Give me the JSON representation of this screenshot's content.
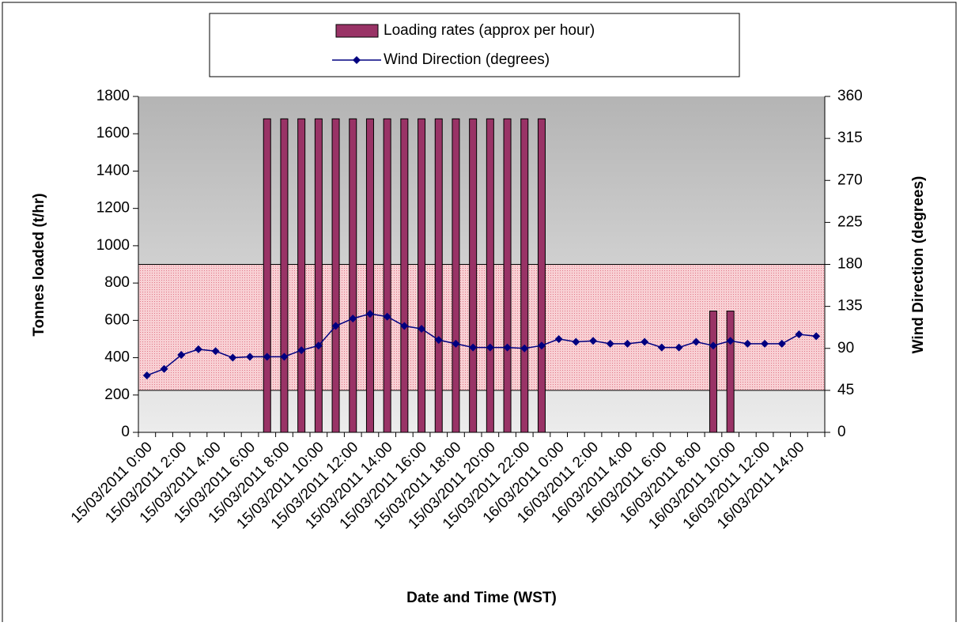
{
  "chart_data": {
    "type": "bar_line",
    "xlabel": "Date and Time (WST)",
    "ylabel": "Tonnes loaded (t/hr)",
    "y2label": "Wind Direction (degrees)",
    "categories": [
      "15/03/2011 0:00",
      null,
      "15/03/2011 2:00",
      null,
      "15/03/2011 4:00",
      null,
      "15/03/2011 6:00",
      null,
      "15/03/2011 8:00",
      null,
      "15/03/2011 10:00",
      null,
      "15/03/2011 12:00",
      null,
      "15/03/2011 14:00",
      null,
      "15/03/2011 16:00",
      null,
      "15/03/2011 18:00",
      null,
      "15/03/2011 20:00",
      null,
      "15/03/2011 22:00",
      null,
      "16/03/2011 0:00",
      null,
      "16/03/2011 2:00",
      null,
      "16/03/2011 4:00",
      null,
      "16/03/2011 6:00",
      null,
      "16/03/2011 8:00",
      null,
      "16/03/2011 10:00",
      null,
      "16/03/2011 12:00",
      null,
      "16/03/2011 14:00",
      null
    ],
    "series": [
      {
        "name": "Loading rates (approx per hour)",
        "color": "#993366",
        "kind": "bar",
        "values": [
          0,
          0,
          0,
          0,
          0,
          0,
          0,
          1680,
          1680,
          1680,
          1680,
          1680,
          1680,
          1680,
          1680,
          1680,
          1680,
          1680,
          1680,
          1680,
          1680,
          1680,
          1680,
          1680,
          0,
          0,
          0,
          0,
          0,
          0,
          0,
          0,
          0,
          650,
          650,
          0,
          0,
          0,
          0,
          0
        ]
      },
      {
        "name": "Wind Direction (degrees)",
        "color": "#000080",
        "kind": "line",
        "axis": "y2",
        "values": [
          61,
          68,
          83,
          89,
          87,
          80,
          81,
          81,
          81,
          88,
          93,
          114,
          122,
          127,
          124,
          114,
          111,
          99,
          95,
          91,
          91,
          91,
          90,
          93,
          100,
          97,
          98,
          95,
          95,
          97,
          91,
          91,
          97,
          93,
          98,
          95,
          95,
          95,
          105,
          103
        ]
      }
    ],
    "highlight_range": [
      45,
      180
    ],
    "ylim": [
      0,
      1800
    ],
    "yticks": [
      0,
      200,
      400,
      600,
      800,
      1000,
      1200,
      1400,
      1600,
      1800
    ],
    "y2lim": [
      0,
      360
    ],
    "y2ticks": [
      0,
      45,
      90,
      135,
      180,
      225,
      270,
      315,
      360
    ]
  }
}
